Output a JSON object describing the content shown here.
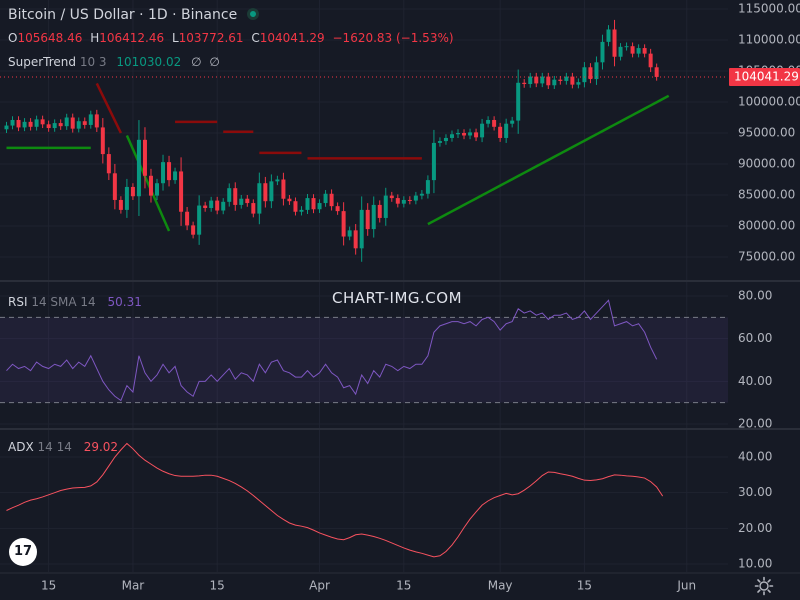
{
  "header": {
    "title": "Bitcoin / US Dollar · 1D · Binance",
    "open_label": "O",
    "open": "105648.46",
    "high_label": "H",
    "high": "106412.46",
    "low_label": "L",
    "low": "103772.61",
    "close_label": "C",
    "close": "104041.29",
    "change": "−1620.83 (−1.53%)"
  },
  "supertrend": {
    "name": "SuperTrend",
    "params": "10 3",
    "value": "101030.02",
    "na1": "∅",
    "na2": "∅"
  },
  "rsi": {
    "name": "RSI",
    "params": "14 SMA 14",
    "value": "50.31"
  },
  "adx": {
    "name": "ADX",
    "params": "14 14",
    "value": "29.02"
  },
  "watermark": "CHART-IMG.COM",
  "logo": "17",
  "colors": {
    "bg": "#161a25",
    "up": "#089981",
    "down": "#f23645",
    "st_up": "#0e8a10",
    "st_down": "#8b0b0b",
    "rsi": "#7e57c2",
    "adx": "#f7525f",
    "axis_text": "#b2b5be"
  },
  "chart_data": [
    {
      "type": "candlestick",
      "title": "Bitcoin / US Dollar · 1D · Binance",
      "ylim": [
        73000,
        117000
      ],
      "y_ticks": [
        75000,
        80000,
        85000,
        90000,
        95000,
        100000,
        105000,
        110000,
        115000
      ],
      "y_tick_labels": [
        "75000.00",
        "80000.00",
        "85000.00",
        "90000.00",
        "95000.00",
        "100000.00",
        "105000.00",
        "110000.00",
        "115000.00"
      ],
      "last_price": 104041.29,
      "last_price_label": "104041.29",
      "x_ticks": [
        {
          "i": 7,
          "label": "15"
        },
        {
          "i": 21,
          "label": "Mar"
        },
        {
          "i": 35,
          "label": "15"
        },
        {
          "i": 52,
          "label": "Apr"
        },
        {
          "i": 66,
          "label": "15"
        },
        {
          "i": 82,
          "label": "May"
        },
        {
          "i": 96,
          "label": "15"
        },
        {
          "i": 113,
          "label": "Jun"
        }
      ],
      "closes": [
        96200,
        97100,
        95900,
        96800,
        96000,
        97200,
        96400,
        95800,
        96600,
        96100,
        97500,
        95700,
        96900,
        96300,
        98000,
        95900,
        91600,
        88500,
        84200,
        82600,
        86300,
        84800,
        93900,
        88100,
        84900,
        86900,
        90300,
        87400,
        88800,
        82300,
        80100,
        78600,
        83300,
        82900,
        84100,
        82500,
        83900,
        86100,
        83400,
        84400,
        83700,
        82000,
        86900,
        84000,
        87200,
        87500,
        84400,
        84000,
        82300,
        82600,
        84500,
        82700,
        83700,
        85200,
        83200,
        82400,
        78300,
        79300,
        76400,
        82600,
        79500,
        83400,
        81300,
        84900,
        84500,
        83600,
        84200,
        84100,
        84900,
        85200,
        87400,
        93400,
        93700,
        94200,
        94800,
        95000,
        94600,
        95100,
        94300,
        96500,
        97100,
        96000,
        94200,
        96500,
        97000,
        103100,
        102900,
        104100,
        103000,
        104100,
        102700,
        103600,
        103400,
        104100,
        102800,
        103200,
        105600,
        103700,
        106400,
        109700,
        111700,
        107300,
        108900,
        109000,
        107800,
        108700,
        107800,
        105600,
        104041
      ],
      "supertrend": [
        {
          "from": 0,
          "to": 14,
          "side": "up",
          "values": [
            92600,
            92600
          ]
        },
        {
          "from": 15,
          "to": 19,
          "side": "down",
          "values": [
            103000,
            95000
          ]
        },
        {
          "from": 20,
          "to": 27,
          "side": "up",
          "values": [
            94600,
            79200
          ]
        },
        {
          "from": 28,
          "to": 35,
          "side": "down",
          "values": [
            96800,
            96800
          ]
        },
        {
          "from": 36,
          "to": 41,
          "side": "down",
          "values": [
            95200,
            95200
          ]
        },
        {
          "from": 42,
          "to": 49,
          "side": "down",
          "values": [
            91800,
            91800
          ]
        },
        {
          "from": 50,
          "to": 69,
          "side": "down",
          "values": [
            90900,
            90900
          ]
        },
        {
          "from": 70,
          "to": 110,
          "side": "up",
          "values": [
            80300,
            101000
          ]
        }
      ],
      "supertrend_last": 101030.02
    },
    {
      "type": "line",
      "name": "RSI 14 SMA 14",
      "ylim": [
        18,
        82
      ],
      "y_ticks": [
        20,
        40,
        60,
        80
      ],
      "y_tick_labels": [
        "20.00",
        "40.00",
        "60.00",
        "80.00"
      ],
      "bands": [
        30,
        70
      ],
      "values": [
        45,
        48,
        46,
        47,
        45,
        49,
        47,
        46,
        48,
        47,
        50,
        46,
        49,
        47,
        52,
        46,
        40,
        36,
        33,
        31,
        38,
        35,
        52,
        44,
        40,
        43,
        48,
        44,
        47,
        38,
        35,
        33,
        40,
        40,
        43,
        40,
        43,
        46,
        41,
        44,
        43,
        40,
        48,
        44,
        49,
        50,
        45,
        44,
        42,
        42,
        45,
        42,
        44,
        48,
        44,
        42,
        37,
        38,
        34,
        43,
        39,
        45,
        42,
        48,
        47,
        45,
        47,
        46,
        48,
        48,
        52,
        63,
        66,
        67,
        68,
        68,
        67,
        68,
        66,
        69,
        70,
        68,
        64,
        67,
        68,
        74,
        72,
        73,
        71,
        72,
        69,
        71,
        71,
        72,
        69,
        70,
        73,
        69,
        72,
        75,
        78,
        66,
        67,
        68,
        66,
        67,
        63,
        56,
        50.31
      ]
    },
    {
      "type": "line",
      "name": "ADX 14 14",
      "ylim": [
        8,
        44
      ],
      "y_ticks": [
        10,
        20,
        30,
        40
      ],
      "y_tick_labels": [
        "10.00",
        "20.00",
        "30.00",
        "40.00"
      ],
      "values": [
        25,
        25.8,
        26.5,
        27.3,
        27.9,
        28.3,
        28.8,
        29.4,
        30,
        30.6,
        31,
        31.3,
        31.4,
        31.5,
        31.9,
        33,
        35,
        37.5,
        40,
        42,
        43.8,
        42.3,
        40.5,
        39.1,
        38,
        36.9,
        36,
        35.3,
        34.8,
        34.6,
        34.6,
        34.6,
        34.7,
        34.9,
        34.9,
        34.6,
        34,
        33.4,
        32.6,
        31.6,
        30.5,
        29.2,
        27.8,
        26.4,
        25,
        23.6,
        22.5,
        21.5,
        20.9,
        20.6,
        20.2,
        19.5,
        18.7,
        18.1,
        17.5,
        17,
        16.8,
        17.4,
        18.2,
        18.4,
        18.1,
        17.7,
        17.2,
        16.6,
        15.9,
        15.2,
        14.5,
        13.9,
        13.4,
        13,
        12.5,
        12,
        12.3,
        13.5,
        15.3,
        17.6,
        20.2,
        22.6,
        24.6,
        26.5,
        27.7,
        28.6,
        29.2,
        29.8,
        29.4,
        29.7,
        30.7,
        31.9,
        33.3,
        34.8,
        35.8,
        35.7,
        35.3,
        35,
        34.6,
        34,
        33.5,
        33.4,
        33.6,
        33.9,
        34.5,
        35,
        34.9,
        34.7,
        34.6,
        34.4,
        34.1,
        33.1,
        31.6,
        29.02
      ]
    }
  ]
}
